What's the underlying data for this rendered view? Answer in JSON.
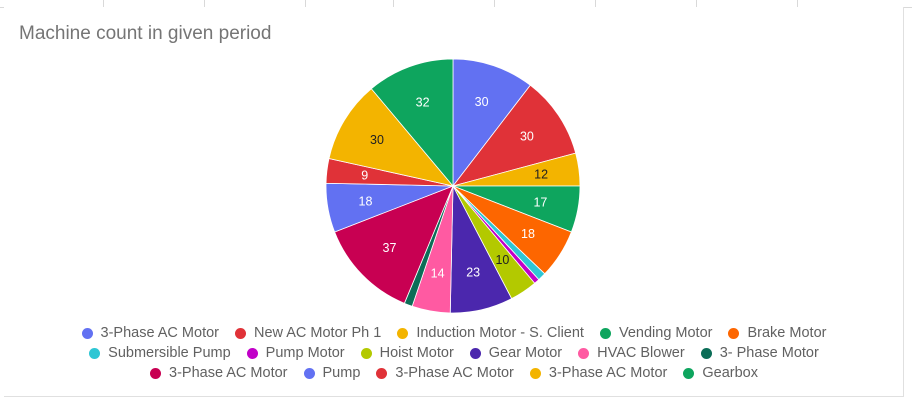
{
  "chart_data": {
    "type": "pie",
    "title": "Machine count in given period",
    "labels_shown_on_slices": true,
    "legend_position": "bottom",
    "slices": [
      {
        "name": "3-Phase AC Motor",
        "value": 30,
        "color": "#6271f2"
      },
      {
        "name": "New AC Motor Ph 1",
        "value": 30,
        "color": "#e03238"
      },
      {
        "name": "Induction Motor - S. Client",
        "value": 12,
        "color": "#f3b400"
      },
      {
        "name": "Vending Motor",
        "value": 17,
        "color": "#0ea55e"
      },
      {
        "name": "Brake Motor",
        "value": 18,
        "color": "#fd6600"
      },
      {
        "name": "Submersible Pump",
        "value": 3,
        "color": "#2ec6d4"
      },
      {
        "name": "Pump Motor",
        "value": 2,
        "color": "#c100c8"
      },
      {
        "name": "Hoist Motor",
        "value": 10,
        "color": "#b3c900"
      },
      {
        "name": "Gear Motor",
        "value": 23,
        "color": "#4b27ad"
      },
      {
        "name": "HVAC Blower",
        "value": 14,
        "color": "#ff5aa2"
      },
      {
        "name": "3- Phase Motor",
        "value": 3,
        "color": "#0b6d57"
      },
      {
        "name": "3-Phase AC Motor",
        "value": 37,
        "color": "#c80052"
      },
      {
        "name": "Pump",
        "value": 18,
        "color": "#6271f2"
      },
      {
        "name": "3-Phase AC Motor",
        "value": 9,
        "color": "#e03238"
      },
      {
        "name": "3-Phase AC Motor",
        "value": 30,
        "color": "#f3b400"
      },
      {
        "name": "Gearbox",
        "value": 32,
        "color": "#0ea55e"
      }
    ]
  },
  "legend_rows": [
    [
      0,
      1,
      2,
      3,
      4
    ],
    [
      5,
      6,
      7,
      8,
      9,
      10
    ],
    [
      11,
      12,
      13,
      14,
      15
    ]
  ]
}
